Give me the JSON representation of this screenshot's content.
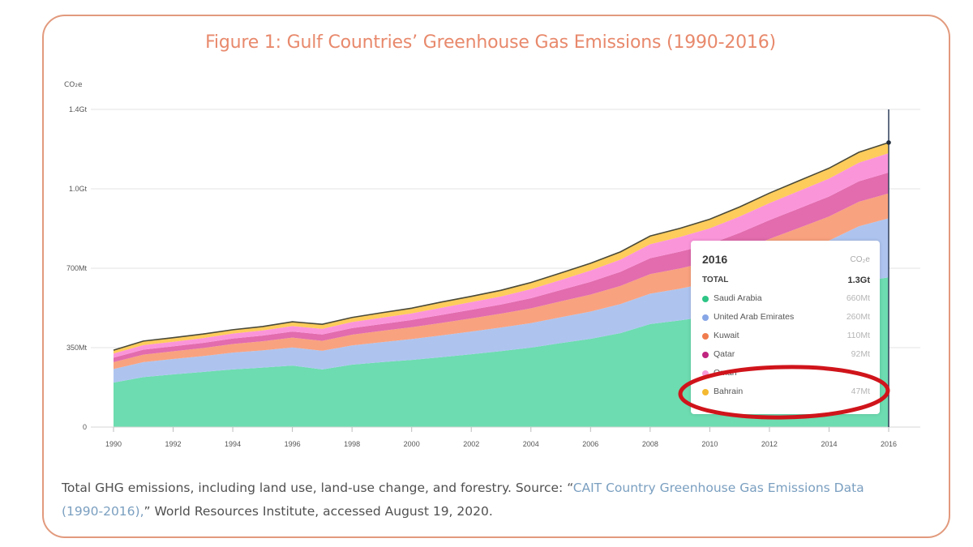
{
  "figure": {
    "title": "Figure 1: Gulf Countries’ Greenhouse Gas Emissions (1990-2016)",
    "caption_prefix": "Total GHG emissions, including land use, land-use change, and forestry. Source: “",
    "caption_link": "CAIT Country Greenhouse Gas Emissions Data (1990-2016),",
    "caption_suffix": "” World Resources Institute, accessed August 19, 2020.",
    "frame_color": "#e29a7d",
    "title_color": "#e8896c"
  },
  "chart_data": {
    "type": "area",
    "stacked": true,
    "title": "",
    "unit_label": "CO₂e",
    "xlabel": "",
    "ylabel": "CO₂e",
    "ylim": [
      0,
      1400
    ],
    "y_unit": "Mt",
    "yticks": [
      {
        "value": 0,
        "label": "0"
      },
      {
        "value": 350,
        "label": "350Mt"
      },
      {
        "value": 700,
        "label": "700Mt"
      },
      {
        "value": 1050,
        "label": "1.0Gt"
      },
      {
        "value": 1400,
        "label": "1.4Gt"
      }
    ],
    "xticks": [
      "1990",
      "1992",
      "1994",
      "1996",
      "1998",
      "2000",
      "2002",
      "2004",
      "2006",
      "2008",
      "2010",
      "2012",
      "2014",
      "2016"
    ],
    "grid": true,
    "x": [
      1990,
      1991,
      1992,
      1993,
      1994,
      1995,
      1996,
      1997,
      1998,
      1999,
      2000,
      2001,
      2002,
      2003,
      2004,
      2005,
      2006,
      2007,
      2008,
      2009,
      2010,
      2011,
      2012,
      2013,
      2014,
      2015,
      2016
    ],
    "series": [
      {
        "name": "Saudi Arabia",
        "color": "#6ddcb0",
        "values": [
          196,
          220,
          232,
          243,
          254,
          262,
          271,
          254,
          275,
          286,
          296,
          308,
          321,
          335,
          350,
          370,
          389,
          414,
          454,
          470,
          489,
          520,
          554,
          580,
          607,
          640,
          660
        ]
      },
      {
        "name": "United Arab Emirates",
        "color": "#aec4ef",
        "values": [
          60,
          66,
          68,
          70,
          74,
          76,
          80,
          82,
          85,
          88,
          92,
          96,
          100,
          104,
          108,
          114,
          120,
          128,
          134,
          140,
          148,
          160,
          175,
          195,
          215,
          245,
          260
        ]
      },
      {
        "name": "Kuwait",
        "color": "#f9a27f",
        "values": [
          30,
          33,
          34,
          35,
          38,
          40,
          43,
          44,
          47,
          50,
          52,
          55,
          58,
          61,
          65,
          70,
          75,
          80,
          86,
          89,
          92,
          96,
          100,
          103,
          106,
          108,
          110
        ]
      },
      {
        "name": "Qatar",
        "color": "#e26cae",
        "values": [
          20,
          22,
          22,
          23,
          24,
          25,
          27,
          28,
          29,
          30,
          32,
          35,
          38,
          40,
          45,
          50,
          56,
          62,
          70,
          74,
          77,
          80,
          83,
          86,
          88,
          90,
          92
        ]
      },
      {
        "name": "Oman",
        "color": "#fb95da",
        "values": [
          18,
          20,
          20,
          21,
          22,
          23,
          24,
          25,
          27,
          28,
          29,
          32,
          34,
          36,
          40,
          44,
          50,
          54,
          62,
          65,
          70,
          72,
          75,
          77,
          79,
          82,
          85
        ]
      },
      {
        "name": "Bahrain",
        "color": "#fdcc5b",
        "values": [
          15,
          18,
          18,
          18,
          17,
          17,
          19,
          20,
          20,
          22,
          23,
          25,
          25,
          27,
          29,
          31,
          32,
          34,
          36,
          38,
          40,
          42,
          44,
          45,
          46,
          46,
          47
        ]
      }
    ],
    "hover": {
      "year": "2016",
      "unit": "CO₂e",
      "total_label": "TOTAL",
      "total_value": "1.3Gt",
      "rows": [
        {
          "name": "Saudi Arabia",
          "value": "660Mt",
          "color": "#2ec586"
        },
        {
          "name": "United Arab Emirates",
          "value": "260Mt",
          "color": "#86a6e6"
        },
        {
          "name": "Kuwait",
          "value": "110Mt",
          "color": "#f07c4e"
        },
        {
          "name": "Qatar",
          "value": "92Mt",
          "color": "#c0257f"
        },
        {
          "name": "Oman",
          "value": "",
          "color": "#f79ad8"
        },
        {
          "name": "Bahrain",
          "value": "47Mt",
          "color": "#f4b930"
        }
      ]
    },
    "annotation": {
      "type": "ellipse",
      "target": "Bahrain",
      "color": "#d0141b"
    }
  }
}
